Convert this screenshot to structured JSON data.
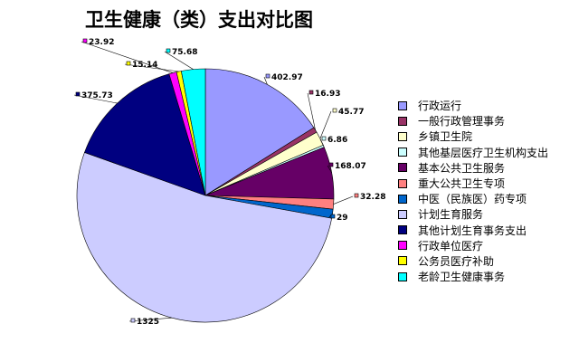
{
  "chart_data": {
    "type": "pie",
    "title": "卫生健康（类）支出对比图",
    "slices": [
      {
        "label": "行政运行",
        "value": 402.97,
        "value_label": "402.97",
        "color": "#9999ff"
      },
      {
        "label": "一般行政管理事务",
        "value": 16.93,
        "value_label": "16.93",
        "color": "#993366"
      },
      {
        "label": "乡镇卫生院",
        "value": 45.77,
        "value_label": "45.77",
        "color": "#ffffcc"
      },
      {
        "label": "其他基层医疗卫生机构支出",
        "value": 6.86,
        "value_label": "6.86",
        "color": "#ccffff"
      },
      {
        "label": "基本公共卫生服务",
        "value": 168.07,
        "value_label": "168.07",
        "color": "#660066"
      },
      {
        "label": "重大公共卫生专项",
        "value": 32.28,
        "value_label": "32.28",
        "color": "#ff8080"
      },
      {
        "label": "中医（民族医）药专项",
        "value": 29,
        "value_label": "29",
        "color": "#0066cc"
      },
      {
        "label": "计划生育服务",
        "value": 1325,
        "value_label": "1325",
        "color": "#ccccff"
      },
      {
        "label": "其他计划生育事务支出",
        "value": 375.73,
        "value_label": "375.73",
        "color": "#000080"
      },
      {
        "label": "行政单位医疗",
        "value": 23.92,
        "value_label": "23.92",
        "color": "#ff00ff"
      },
      {
        "label": "公务员医疗补助",
        "value": 15.14,
        "value_label": "15.14",
        "color": "#ffff00"
      },
      {
        "label": "老龄卫生健康事务",
        "value": 75.68,
        "value_label": "75.68",
        "color": "#00ffff"
      }
    ],
    "legend_position": "right"
  }
}
